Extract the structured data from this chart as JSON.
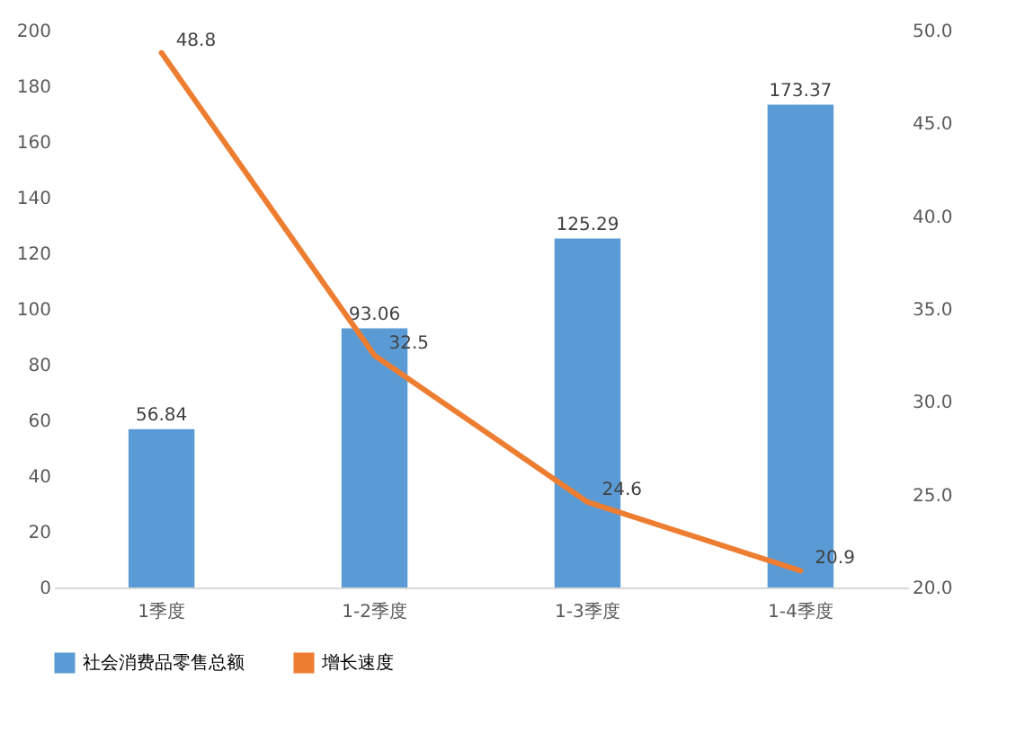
{
  "chart_data": {
    "type": "bar",
    "categories": [
      "1季度",
      "1-2季度",
      "1-3季度",
      "1-4季度"
    ],
    "series": [
      {
        "name": "社会消费品零售总额",
        "color": "#5b9bd5",
        "values": [
          56.84,
          93.06,
          125.29,
          173.37
        ]
      },
      {
        "name": "增长速度",
        "color": "#ed7d31",
        "type": "line",
        "axis": "y2",
        "values": [
          48.8,
          32.5,
          24.6,
          20.9
        ]
      }
    ],
    "ylim": [
      0,
      200
    ],
    "yticks": [
      0,
      20,
      40,
      60,
      80,
      100,
      120,
      140,
      160,
      180,
      200
    ],
    "y2lim": [
      20,
      50
    ],
    "y2ticks": [
      {
        "value": 20,
        "label": "20.0"
      },
      {
        "value": 25,
        "label": "25.0"
      },
      {
        "value": 30,
        "label": "30.0"
      },
      {
        "value": 35,
        "label": "35.0"
      },
      {
        "value": 40,
        "label": "40.0"
      },
      {
        "value": 45,
        "label": "45.0"
      },
      {
        "value": 50,
        "label": "50.0"
      }
    ],
    "data_labels": true,
    "legend": "bottom"
  }
}
